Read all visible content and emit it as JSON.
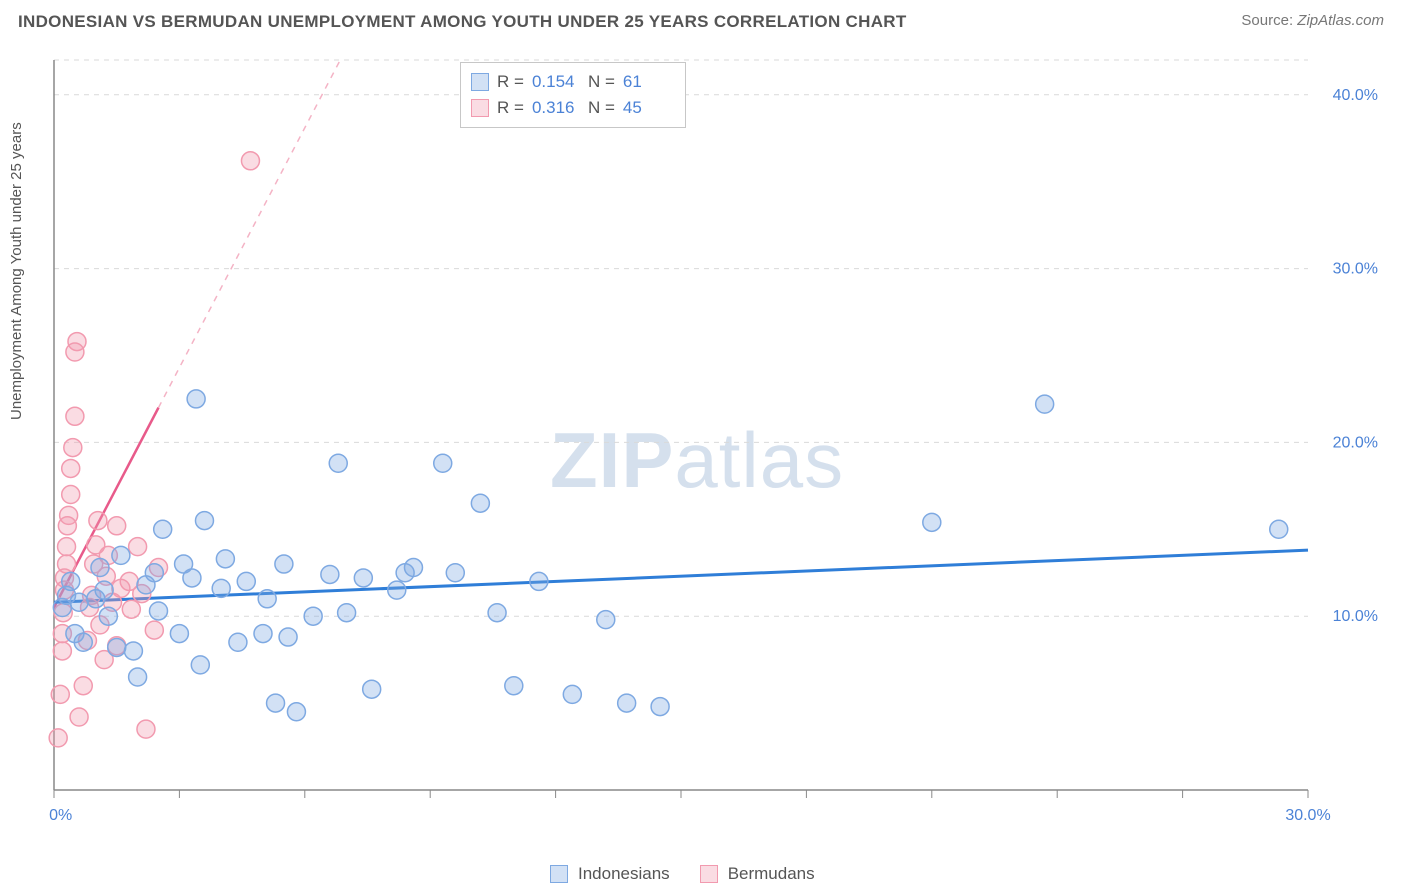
{
  "title": "INDONESIAN VS BERMUDAN UNEMPLOYMENT AMONG YOUTH UNDER 25 YEARS CORRELATION CHART",
  "source_prefix": "Source: ",
  "source_name": "ZipAtlas.com",
  "watermark_a": "ZIP",
  "watermark_b": "atlas",
  "y_axis_label": "Unemployment Among Youth under 25 years",
  "chart": {
    "type": "scatter",
    "background_color": "#ffffff",
    "grid_color": "#d9d9d9",
    "axis_color": "#888888",
    "tick_label_color": "#4b82d6",
    "tick_fontsize": 16,
    "xlim": [
      0,
      30
    ],
    "ylim": [
      0,
      42
    ],
    "x_ticks": [
      0,
      3,
      6,
      9,
      12,
      15,
      18,
      21,
      24,
      27,
      30
    ],
    "y_ticks": [
      10,
      20,
      30,
      40
    ],
    "x_tick_labels": {
      "0": "0.0%",
      "30": "30.0%"
    },
    "y_tick_labels": {
      "10": "10.0%",
      "20": "20.0%",
      "30": "30.0%",
      "40": "40.0%"
    },
    "marker_radius": 9,
    "series": [
      {
        "name": "Indonesians",
        "color_fill": "rgba(126,169,226,0.35)",
        "color_stroke": "#7ea9e2",
        "trend_color": "#2f7ed8",
        "trend_width": 3,
        "trend": {
          "y_at_x0": 10.8,
          "y_at_xmax": 13.8
        },
        "points": [
          [
            0.2,
            10.5
          ],
          [
            0.3,
            11.2
          ],
          [
            0.4,
            12.0
          ],
          [
            0.5,
            9.0
          ],
          [
            0.6,
            10.8
          ],
          [
            0.7,
            8.5
          ],
          [
            1.0,
            11.0
          ],
          [
            1.1,
            12.8
          ],
          [
            1.2,
            11.5
          ],
          [
            1.3,
            10.0
          ],
          [
            1.5,
            8.2
          ],
          [
            1.6,
            13.5
          ],
          [
            1.9,
            8.0
          ],
          [
            2.0,
            6.5
          ],
          [
            2.2,
            11.8
          ],
          [
            2.4,
            12.5
          ],
          [
            2.5,
            10.3
          ],
          [
            2.6,
            15.0
          ],
          [
            3.0,
            9.0
          ],
          [
            3.1,
            13.0
          ],
          [
            3.3,
            12.2
          ],
          [
            3.4,
            22.5
          ],
          [
            3.5,
            7.2
          ],
          [
            3.6,
            15.5
          ],
          [
            4.0,
            11.6
          ],
          [
            4.1,
            13.3
          ],
          [
            4.4,
            8.5
          ],
          [
            4.6,
            12.0
          ],
          [
            5.0,
            9.0
          ],
          [
            5.1,
            11.0
          ],
          [
            5.3,
            5.0
          ],
          [
            5.5,
            13.0
          ],
          [
            5.6,
            8.8
          ],
          [
            5.8,
            4.5
          ],
          [
            6.2,
            10.0
          ],
          [
            6.6,
            12.4
          ],
          [
            6.8,
            18.8
          ],
          [
            7.0,
            10.2
          ],
          [
            7.4,
            12.2
          ],
          [
            7.6,
            5.8
          ],
          [
            8.2,
            11.5
          ],
          [
            8.4,
            12.5
          ],
          [
            8.6,
            12.8
          ],
          [
            9.3,
            18.8
          ],
          [
            9.6,
            12.5
          ],
          [
            10.2,
            16.5
          ],
          [
            10.6,
            10.2
          ],
          [
            11.0,
            6.0
          ],
          [
            11.6,
            12.0
          ],
          [
            12.4,
            5.5
          ],
          [
            13.2,
            9.8
          ],
          [
            13.7,
            5.0
          ],
          [
            14.5,
            4.8
          ],
          [
            21.0,
            15.4
          ],
          [
            23.7,
            22.2
          ],
          [
            29.3,
            15.0
          ]
        ]
      },
      {
        "name": "Bermudans",
        "color_fill": "rgba(242,154,175,0.35)",
        "color_stroke": "#f29aaf",
        "trend_color": "#e85a8a",
        "trend_dashed_color": "#f4b3c5",
        "trend_width": 2.5,
        "trend": {
          "y_at_x0": 10.5,
          "slope": 4.6
        },
        "points": [
          [
            0.1,
            3.0
          ],
          [
            0.15,
            5.5
          ],
          [
            0.2,
            8.0
          ],
          [
            0.2,
            9.0
          ],
          [
            0.22,
            10.2
          ],
          [
            0.25,
            11.5
          ],
          [
            0.25,
            12.2
          ],
          [
            0.3,
            13.0
          ],
          [
            0.3,
            14.0
          ],
          [
            0.32,
            15.2
          ],
          [
            0.35,
            15.8
          ],
          [
            0.4,
            17.0
          ],
          [
            0.4,
            18.5
          ],
          [
            0.45,
            19.7
          ],
          [
            0.5,
            21.5
          ],
          [
            0.5,
            25.2
          ],
          [
            0.55,
            25.8
          ],
          [
            0.6,
            4.2
          ],
          [
            0.7,
            6.0
          ],
          [
            0.8,
            8.6
          ],
          [
            0.85,
            10.5
          ],
          [
            0.9,
            11.2
          ],
          [
            0.95,
            13.0
          ],
          [
            1.0,
            14.1
          ],
          [
            1.05,
            15.5
          ],
          [
            1.1,
            9.5
          ],
          [
            1.2,
            7.5
          ],
          [
            1.25,
            12.3
          ],
          [
            1.3,
            13.5
          ],
          [
            1.4,
            10.8
          ],
          [
            1.5,
            8.3
          ],
          [
            1.5,
            15.2
          ],
          [
            1.6,
            11.6
          ],
          [
            1.8,
            12.0
          ],
          [
            1.85,
            10.4
          ],
          [
            2.0,
            14.0
          ],
          [
            2.1,
            11.3
          ],
          [
            2.2,
            3.5
          ],
          [
            2.4,
            9.2
          ],
          [
            2.5,
            12.8
          ],
          [
            4.7,
            36.2
          ]
        ]
      }
    ]
  },
  "corr_legend": {
    "rows": [
      {
        "swatch": "blue",
        "r_label": "R =",
        "r": "0.154",
        "n_label": "N =",
        "n": "61"
      },
      {
        "swatch": "pink",
        "r_label": "R =",
        "r": "0.316",
        "n_label": "N =",
        "n": "45"
      }
    ]
  },
  "series_legend": [
    {
      "swatch": "blue",
      "label": "Indonesians"
    },
    {
      "swatch": "pink",
      "label": "Bermudans"
    }
  ]
}
